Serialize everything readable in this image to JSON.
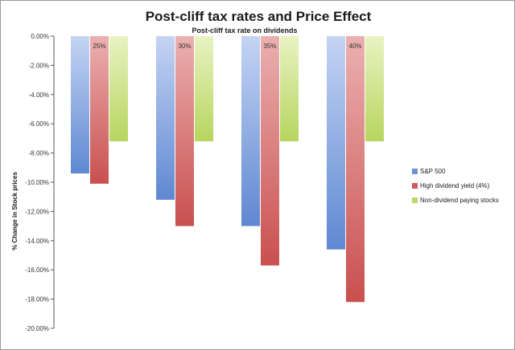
{
  "chart_data": {
    "type": "bar",
    "title": "Post-cliff tax rates and Price Effect",
    "xlabel": "Post-cliff tax rate on dividends",
    "ylabel": "% Change in Stock prices",
    "categories": [
      "25%",
      "30%",
      "35%",
      "40%"
    ],
    "series": [
      {
        "name": "S&P 500",
        "values": [
          -9.4,
          -11.2,
          -13.0,
          -14.6
        ]
      },
      {
        "name": "High dividend yield (4%)",
        "values": [
          -10.1,
          -13.0,
          -15.7,
          -18.2
        ]
      },
      {
        "name": "Non-dividend paying stocks",
        "values": [
          -7.2,
          -7.2,
          -7.2,
          -7.2
        ]
      }
    ],
    "ylim": [
      -20,
      0
    ],
    "yticks": [
      "0.00%",
      "-2.00%",
      "-4.00%",
      "-6.00%",
      "-8.00%",
      "-10.00%",
      "-12.00%",
      "-14.00%",
      "-16.00%",
      "-18.00%",
      "-20.00%"
    ],
    "legend": "right",
    "grid": false,
    "colors": [
      "#6d93d6",
      "#cf5a5a",
      "#bcd86a"
    ]
  }
}
